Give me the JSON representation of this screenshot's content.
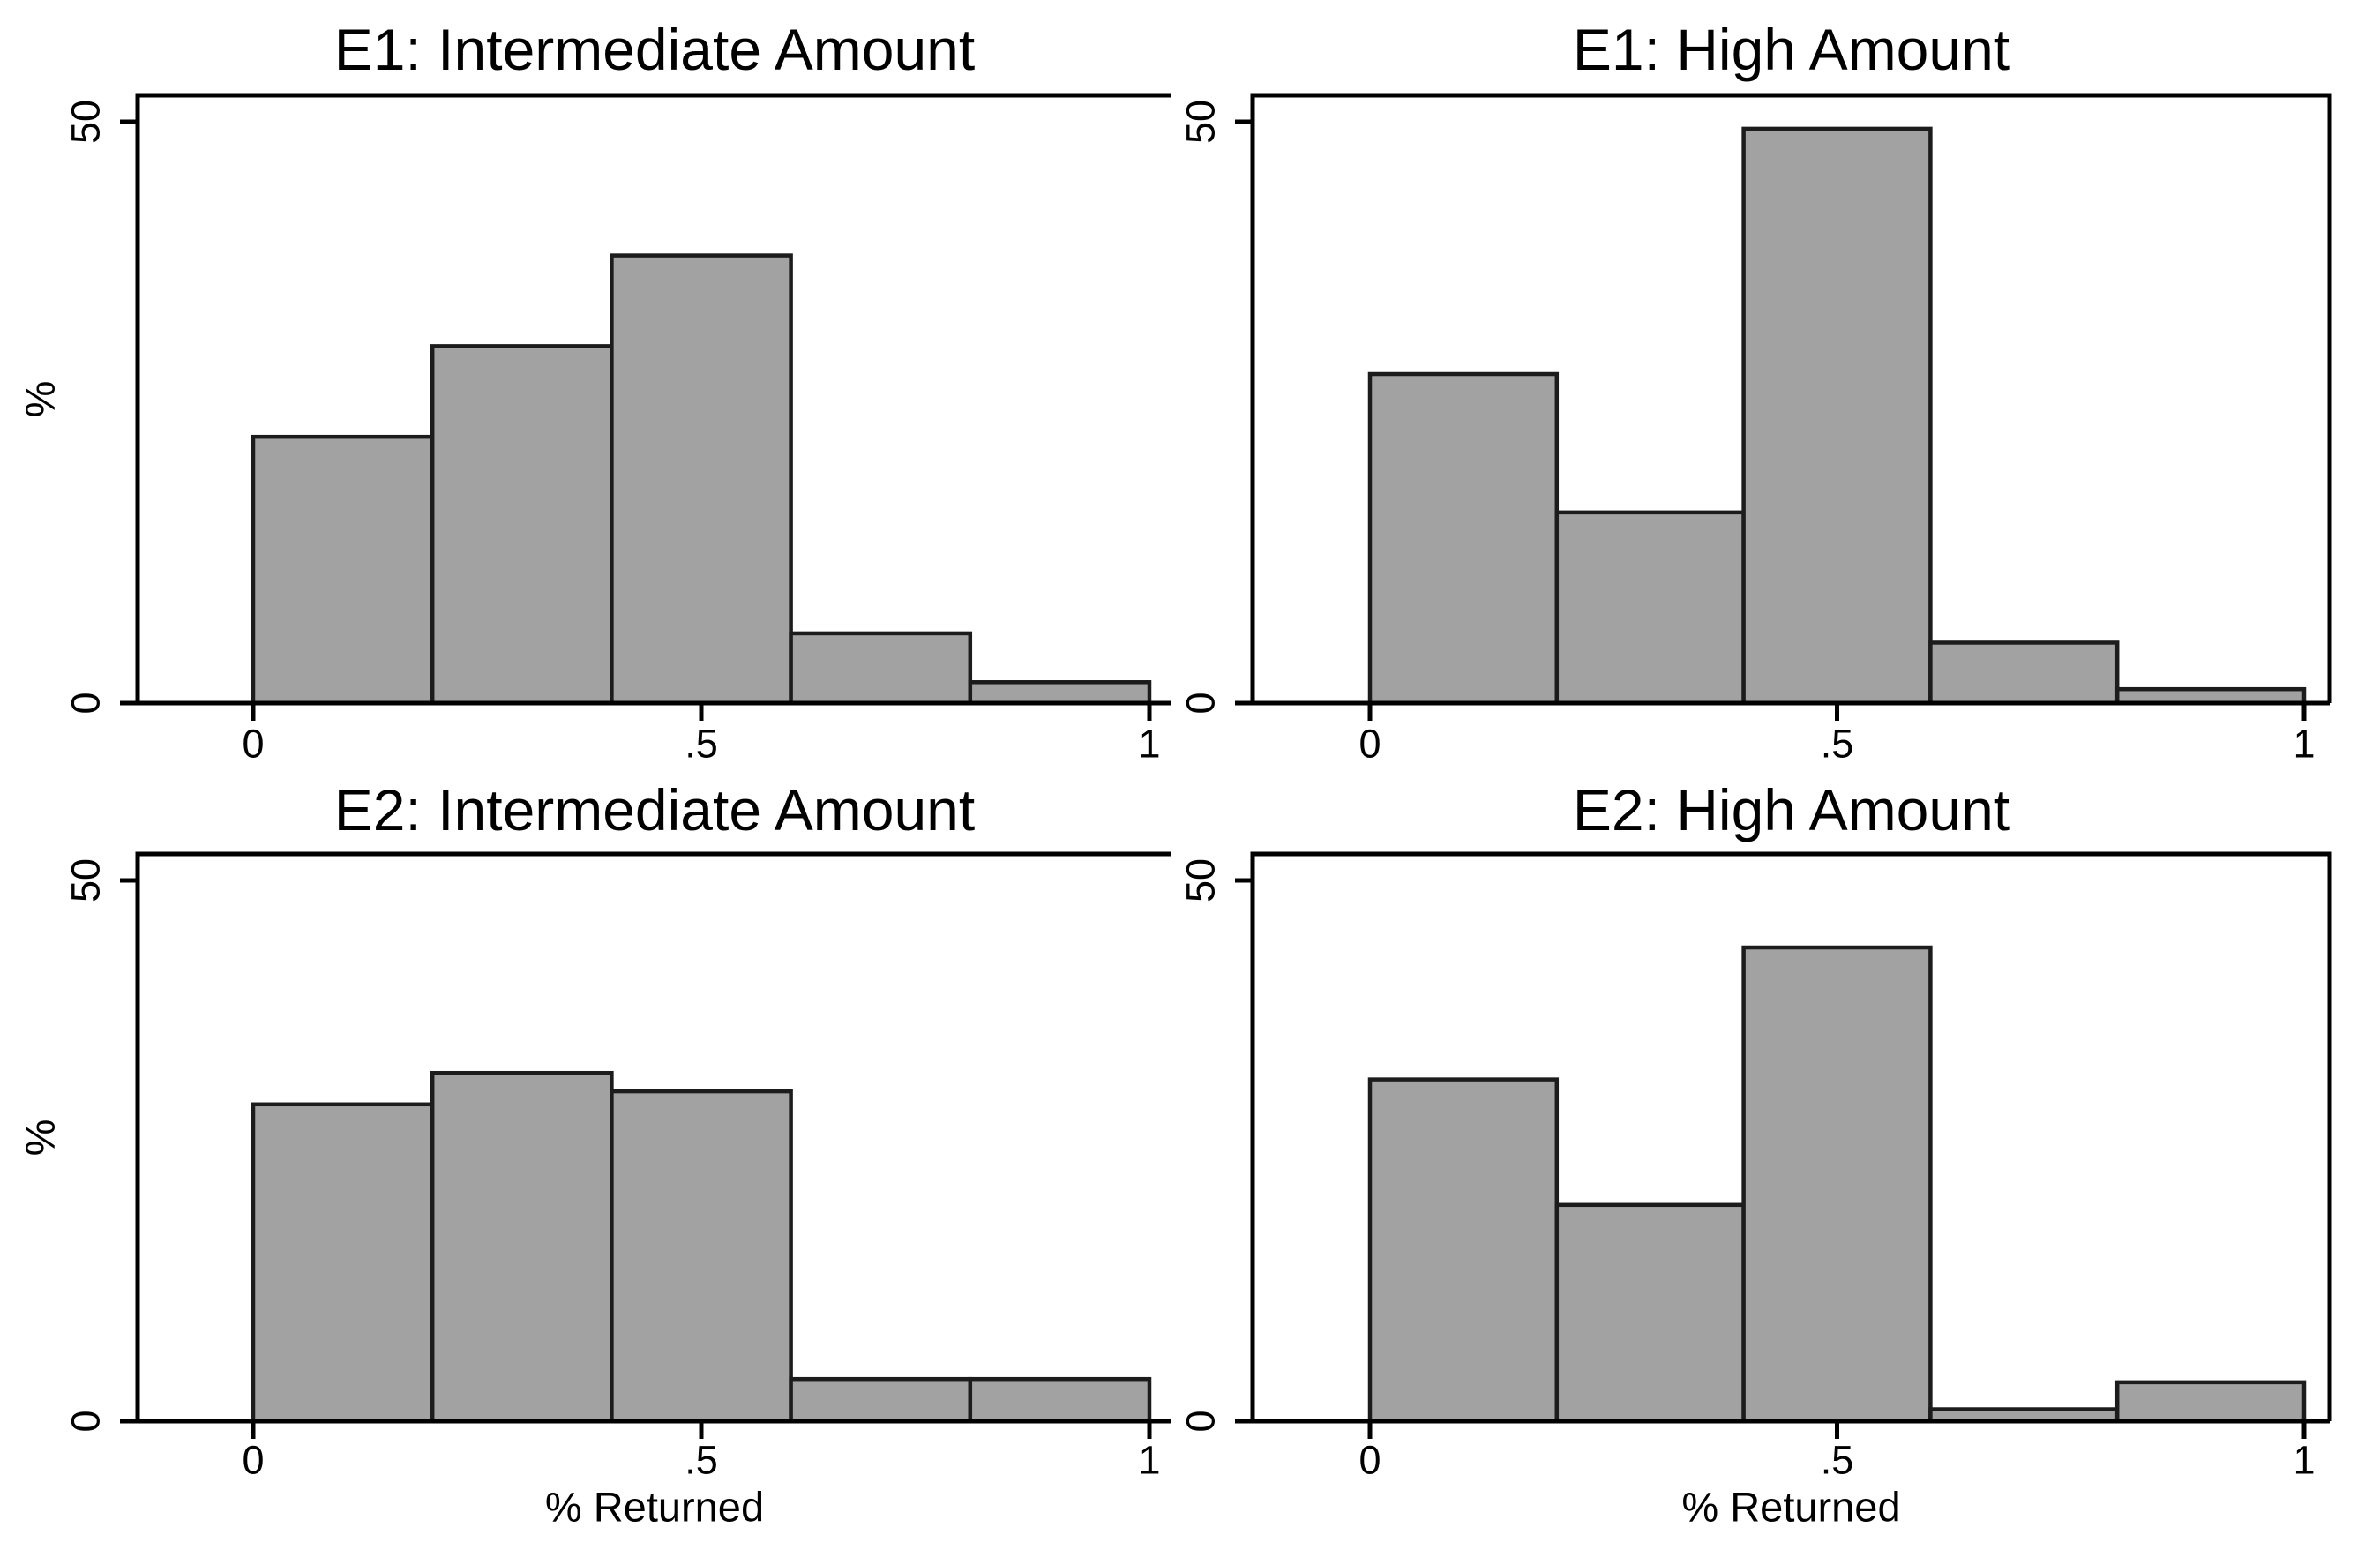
{
  "figure": {
    "background": "#ffffff",
    "bar_fill": "#a2a2a2",
    "bar_stroke": "#1c1c1c",
    "axis_color": "#000000",
    "ylabel": "%",
    "xlabel": "% Returned",
    "y_ticks": [
      {
        "v": 0,
        "label": "0"
      },
      {
        "v": 50,
        "label": "50"
      }
    ],
    "x_ticks": [
      {
        "v": 0,
        "label": "0"
      },
      {
        "v": 0.5,
        "label": ".5"
      },
      {
        "v": 1,
        "label": "1"
      }
    ]
  },
  "chart_data": [
    {
      "type": "bar",
      "id": "e1-intermediate",
      "title": "E1: Intermediate Amount",
      "row": 0,
      "col": 0,
      "xlabel": "",
      "ylabel": "%",
      "xlim": [
        0,
        1
      ],
      "ylim": [
        0,
        50
      ],
      "bin_edges": [
        0,
        0.2,
        0.4,
        0.6,
        0.8,
        1.0
      ],
      "values": [
        22.9,
        30.7,
        38.5,
        6.0,
        1.8
      ]
    },
    {
      "type": "bar",
      "id": "e1-high",
      "title": "E1: High Amount",
      "row": 0,
      "col": 1,
      "xlabel": "",
      "ylabel": "",
      "xlim": [
        0,
        1
      ],
      "ylim": [
        0,
        50
      ],
      "bin_edges": [
        0,
        0.2,
        0.4,
        0.6,
        0.8,
        1.0
      ],
      "values": [
        28.3,
        16.4,
        49.4,
        5.2,
        1.2
      ]
    },
    {
      "type": "bar",
      "id": "e2-intermediate",
      "title": "E2: Intermediate Amount",
      "row": 1,
      "col": 0,
      "xlabel": "% Returned",
      "ylabel": "%",
      "xlim": [
        0,
        1
      ],
      "ylim": [
        0,
        50
      ],
      "bin_edges": [
        0,
        0.2,
        0.4,
        0.6,
        0.8,
        1.0
      ],
      "values": [
        29.3,
        32.2,
        30.5,
        3.9,
        3.9
      ]
    },
    {
      "type": "bar",
      "id": "e2-high",
      "title": "E2: High Amount",
      "row": 1,
      "col": 1,
      "xlabel": "% Returned",
      "ylabel": "",
      "xlim": [
        0,
        1
      ],
      "ylim": [
        0,
        50
      ],
      "bin_edges": [
        0,
        0.2,
        0.4,
        0.6,
        0.8,
        1.0
      ],
      "values": [
        31.6,
        20.0,
        43.8,
        1.1,
        3.6
      ]
    }
  ]
}
